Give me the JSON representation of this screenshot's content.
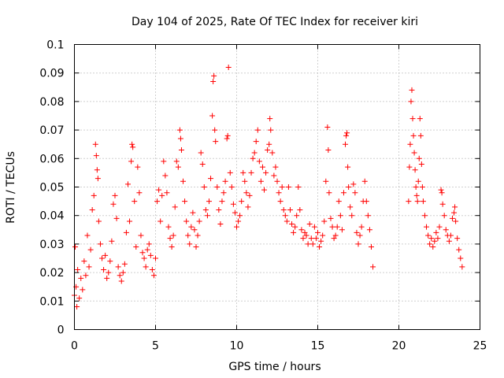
{
  "chart_data": {
    "type": "scatter",
    "title": "Day 104 of 2025, Rate Of TEC Index for receiver kiri",
    "xlabel": "GPS time / hours",
    "ylabel": "ROTI / TECUs",
    "xlim": [
      0,
      25
    ],
    "ylim": [
      0,
      0.1
    ],
    "xticks": [
      0,
      5,
      10,
      15,
      20,
      25
    ],
    "xtick_labels": [
      "0",
      "5",
      "10",
      "15",
      "20",
      "25"
    ],
    "yticks": [
      0,
      0.01,
      0.02,
      0.03,
      0.04,
      0.05,
      0.06,
      0.07,
      0.08,
      0.09,
      0.1
    ],
    "ytick_labels": [
      "0",
      "0.01",
      "0.02",
      "0.03",
      "0.04",
      "0.05",
      "0.06",
      "0.07",
      "0.08",
      "0.09",
      "0.1"
    ],
    "grid": true,
    "marker": "plus",
    "color": "#ff0000",
    "data_gaps_hours": [
      [
        18.5,
        20.5
      ]
    ],
    "points": [
      [
        0.0,
        0.012
      ],
      [
        0.05,
        0.029
      ],
      [
        0.1,
        0.015
      ],
      [
        0.15,
        0.008
      ],
      [
        0.2,
        0.021
      ],
      [
        0.3,
        0.011
      ],
      [
        0.4,
        0.018
      ],
      [
        0.5,
        0.014
      ],
      [
        0.6,
        0.024
      ],
      [
        0.7,
        0.019
      ],
      [
        0.8,
        0.033
      ],
      [
        0.9,
        0.022
      ],
      [
        1.0,
        0.028
      ],
      [
        1.1,
        0.042
      ],
      [
        1.2,
        0.047
      ],
      [
        1.3,
        0.065
      ],
      [
        1.35,
        0.061
      ],
      [
        1.4,
        0.056
      ],
      [
        1.45,
        0.053
      ],
      [
        1.5,
        0.038
      ],
      [
        1.6,
        0.03
      ],
      [
        1.7,
        0.025
      ],
      [
        1.8,
        0.021
      ],
      [
        1.9,
        0.026
      ],
      [
        2.0,
        0.018
      ],
      [
        2.1,
        0.02
      ],
      [
        2.2,
        0.024
      ],
      [
        2.3,
        0.031
      ],
      [
        2.4,
        0.044
      ],
      [
        2.5,
        0.047
      ],
      [
        2.6,
        0.039
      ],
      [
        2.7,
        0.022
      ],
      [
        2.8,
        0.019
      ],
      [
        2.9,
        0.017
      ],
      [
        3.0,
        0.02
      ],
      [
        3.1,
        0.023
      ],
      [
        3.2,
        0.034
      ],
      [
        3.3,
        0.051
      ],
      [
        3.4,
        0.038
      ],
      [
        3.5,
        0.059
      ],
      [
        3.55,
        0.065
      ],
      [
        3.6,
        0.064
      ],
      [
        3.7,
        0.045
      ],
      [
        3.8,
        0.029
      ],
      [
        3.9,
        0.057
      ],
      [
        4.0,
        0.048
      ],
      [
        4.1,
        0.033
      ],
      [
        4.2,
        0.027
      ],
      [
        4.3,
        0.025
      ],
      [
        4.4,
        0.022
      ],
      [
        4.5,
        0.028
      ],
      [
        4.6,
        0.03
      ],
      [
        4.7,
        0.026
      ],
      [
        4.8,
        0.021
      ],
      [
        4.9,
        0.019
      ],
      [
        5.0,
        0.025
      ],
      [
        5.1,
        0.045
      ],
      [
        5.2,
        0.049
      ],
      [
        5.3,
        0.038
      ],
      [
        5.4,
        0.047
      ],
      [
        5.5,
        0.059
      ],
      [
        5.6,
        0.054
      ],
      [
        5.7,
        0.048
      ],
      [
        5.8,
        0.036
      ],
      [
        5.9,
        0.032
      ],
      [
        6.0,
        0.029
      ],
      [
        6.1,
        0.033
      ],
      [
        6.2,
        0.043
      ],
      [
        6.3,
        0.059
      ],
      [
        6.4,
        0.057
      ],
      [
        6.5,
        0.07
      ],
      [
        6.55,
        0.067
      ],
      [
        6.6,
        0.063
      ],
      [
        6.7,
        0.052
      ],
      [
        6.8,
        0.045
      ],
      [
        6.9,
        0.038
      ],
      [
        7.0,
        0.033
      ],
      [
        7.1,
        0.03
      ],
      [
        7.2,
        0.036
      ],
      [
        7.3,
        0.041
      ],
      [
        7.4,
        0.035
      ],
      [
        7.5,
        0.029
      ],
      [
        7.6,
        0.033
      ],
      [
        7.7,
        0.038
      ],
      [
        7.8,
        0.062
      ],
      [
        7.9,
        0.058
      ],
      [
        8.0,
        0.05
      ],
      [
        8.1,
        0.042
      ],
      [
        8.2,
        0.04
      ],
      [
        8.3,
        0.045
      ],
      [
        8.4,
        0.053
      ],
      [
        8.5,
        0.075
      ],
      [
        8.55,
        0.087
      ],
      [
        8.6,
        0.089
      ],
      [
        8.65,
        0.07
      ],
      [
        8.7,
        0.066
      ],
      [
        8.8,
        0.05
      ],
      [
        8.9,
        0.042
      ],
      [
        9.0,
        0.037
      ],
      [
        9.1,
        0.045
      ],
      [
        9.2,
        0.048
      ],
      [
        9.3,
        0.052
      ],
      [
        9.4,
        0.067
      ],
      [
        9.45,
        0.068
      ],
      [
        9.5,
        0.092
      ],
      [
        9.6,
        0.055
      ],
      [
        9.7,
        0.05
      ],
      [
        9.8,
        0.044
      ],
      [
        9.9,
        0.041
      ],
      [
        10.0,
        0.036
      ],
      [
        10.1,
        0.038
      ],
      [
        10.2,
        0.04
      ],
      [
        10.3,
        0.045
      ],
      [
        10.4,
        0.055
      ],
      [
        10.5,
        0.052
      ],
      [
        10.6,
        0.048
      ],
      [
        10.7,
        0.043
      ],
      [
        10.8,
        0.047
      ],
      [
        10.9,
        0.055
      ],
      [
        11.0,
        0.06
      ],
      [
        11.1,
        0.062
      ],
      [
        11.2,
        0.066
      ],
      [
        11.3,
        0.07
      ],
      [
        11.4,
        0.059
      ],
      [
        11.5,
        0.052
      ],
      [
        11.6,
        0.057
      ],
      [
        11.7,
        0.049
      ],
      [
        11.8,
        0.055
      ],
      [
        11.9,
        0.063
      ],
      [
        12.0,
        0.065
      ],
      [
        12.05,
        0.074
      ],
      [
        12.1,
        0.07
      ],
      [
        12.2,
        0.062
      ],
      [
        12.3,
        0.054
      ],
      [
        12.4,
        0.057
      ],
      [
        12.5,
        0.052
      ],
      [
        12.6,
        0.048
      ],
      [
        12.7,
        0.045
      ],
      [
        12.8,
        0.05
      ],
      [
        12.9,
        0.042
      ],
      [
        13.0,
        0.04
      ],
      [
        13.1,
        0.038
      ],
      [
        13.2,
        0.05
      ],
      [
        13.3,
        0.042
      ],
      [
        13.4,
        0.037
      ],
      [
        13.5,
        0.034
      ],
      [
        13.6,
        0.036
      ],
      [
        13.7,
        0.04
      ],
      [
        13.8,
        0.05
      ],
      [
        13.9,
        0.042
      ],
      [
        14.0,
        0.035
      ],
      [
        14.1,
        0.032
      ],
      [
        14.2,
        0.034
      ],
      [
        14.3,
        0.033
      ],
      [
        14.4,
        0.03
      ],
      [
        14.5,
        0.037
      ],
      [
        14.6,
        0.032
      ],
      [
        14.7,
        0.03
      ],
      [
        14.8,
        0.036
      ],
      [
        14.9,
        0.032
      ],
      [
        15.0,
        0.034
      ],
      [
        15.1,
        0.029
      ],
      [
        15.2,
        0.031
      ],
      [
        15.3,
        0.033
      ],
      [
        15.4,
        0.038
      ],
      [
        15.5,
        0.052
      ],
      [
        15.6,
        0.071
      ],
      [
        15.65,
        0.063
      ],
      [
        15.7,
        0.048
      ],
      [
        15.8,
        0.039
      ],
      [
        15.9,
        0.036
      ],
      [
        16.0,
        0.032
      ],
      [
        16.1,
        0.033
      ],
      [
        16.2,
        0.036
      ],
      [
        16.3,
        0.045
      ],
      [
        16.4,
        0.04
      ],
      [
        16.5,
        0.035
      ],
      [
        16.6,
        0.048
      ],
      [
        16.7,
        0.065
      ],
      [
        16.75,
        0.068
      ],
      [
        16.8,
        0.069
      ],
      [
        16.85,
        0.057
      ],
      [
        16.9,
        0.05
      ],
      [
        17.0,
        0.043
      ],
      [
        17.1,
        0.04
      ],
      [
        17.2,
        0.051
      ],
      [
        17.3,
        0.048
      ],
      [
        17.4,
        0.034
      ],
      [
        17.5,
        0.03
      ],
      [
        17.6,
        0.033
      ],
      [
        17.7,
        0.036
      ],
      [
        17.8,
        0.045
      ],
      [
        17.9,
        0.052
      ],
      [
        18.0,
        0.045
      ],
      [
        18.1,
        0.04
      ],
      [
        18.2,
        0.035
      ],
      [
        18.3,
        0.029
      ],
      [
        18.4,
        0.022
      ],
      [
        20.6,
        0.045
      ],
      [
        20.65,
        0.057
      ],
      [
        20.7,
        0.065
      ],
      [
        20.75,
        0.08
      ],
      [
        20.8,
        0.084
      ],
      [
        20.85,
        0.074
      ],
      [
        20.9,
        0.068
      ],
      [
        20.95,
        0.062
      ],
      [
        21.0,
        0.056
      ],
      [
        21.05,
        0.05
      ],
      [
        21.1,
        0.047
      ],
      [
        21.15,
        0.045
      ],
      [
        21.2,
        0.052
      ],
      [
        21.25,
        0.06
      ],
      [
        21.3,
        0.074
      ],
      [
        21.35,
        0.068
      ],
      [
        21.4,
        0.058
      ],
      [
        21.45,
        0.05
      ],
      [
        21.5,
        0.045
      ],
      [
        21.6,
        0.04
      ],
      [
        21.7,
        0.036
      ],
      [
        21.8,
        0.033
      ],
      [
        21.9,
        0.03
      ],
      [
        22.0,
        0.032
      ],
      [
        22.1,
        0.029
      ],
      [
        22.2,
        0.031
      ],
      [
        22.3,
        0.034
      ],
      [
        22.4,
        0.032
      ],
      [
        22.5,
        0.036
      ],
      [
        22.6,
        0.049
      ],
      [
        22.65,
        0.048
      ],
      [
        22.7,
        0.044
      ],
      [
        22.8,
        0.04
      ],
      [
        22.9,
        0.035
      ],
      [
        23.0,
        0.033
      ],
      [
        23.1,
        0.031
      ],
      [
        23.2,
        0.033
      ],
      [
        23.3,
        0.039
      ],
      [
        23.4,
        0.041
      ],
      [
        23.45,
        0.043
      ],
      [
        23.5,
        0.038
      ],
      [
        23.6,
        0.032
      ],
      [
        23.7,
        0.028
      ],
      [
        23.8,
        0.025
      ],
      [
        23.9,
        0.022
      ]
    ]
  }
}
